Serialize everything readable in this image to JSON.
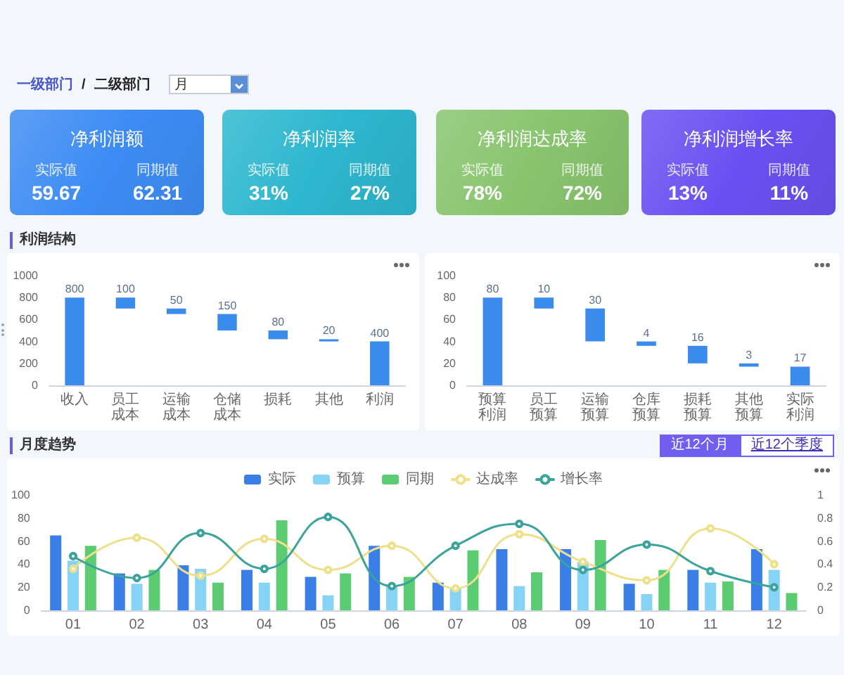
{
  "chart_data": [
    {
      "type": "other",
      "annotations": [
        "一级部门",
        "/",
        "二级部门",
        "月"
      ]
    },
    {
      "type": "other",
      "title": "净利润额",
      "color": "#3d8cf4",
      "annotations": [
        "实际值",
        "59.67",
        "同期值",
        "62.31"
      ]
    },
    {
      "type": "other",
      "title": "净利润率",
      "color": "#2db7cf",
      "annotations": [
        "实际值",
        "31%",
        "同期值",
        "27%"
      ]
    },
    {
      "type": "other",
      "title": "净利润达成率",
      "color": "#88c46e",
      "annotations": [
        "实际值",
        "78%",
        "同期值",
        "72%"
      ]
    },
    {
      "type": "other",
      "title": "净利润增长率",
      "color": "#6a50f2",
      "annotations": [
        "实际值",
        "13%",
        "同期值",
        "11%"
      ]
    },
    {
      "type": "bar",
      "title": "利润结构",
      "categories": [
        "收入",
        "员工成本",
        "运输成本",
        "仓储成本",
        "损耗",
        "其他",
        "利润"
      ],
      "values": [
        800,
        100,
        50,
        150,
        80,
        20,
        400
      ],
      "base": [
        0,
        700,
        650,
        500,
        420,
        400,
        0
      ],
      "color": "#3b8bec",
      "ylim": [
        0,
        1000
      ],
      "yticks": [
        0,
        200,
        400,
        600,
        800,
        1000
      ],
      "data_labels": true
    },
    {
      "type": "bar",
      "categories": [
        "预算利润",
        "员工预算",
        "运输预算",
        "仓库预算",
        "损耗预算",
        "其他预算",
        "实际利润"
      ],
      "values": [
        80,
        10,
        30,
        4,
        16,
        3,
        17
      ],
      "base": [
        0,
        70,
        40,
        36,
        20,
        17,
        0
      ],
      "color": "#3b8bec",
      "ylim": [
        0,
        100
      ],
      "yticks": [
        0,
        20,
        40,
        60,
        80,
        100
      ],
      "data_labels": true
    },
    {
      "type": "bar",
      "title": "月度趋势",
      "annotations": [
        "近12个月",
        "近12个季度"
      ],
      "categories": [
        "01",
        "02",
        "03",
        "04",
        "05",
        "06",
        "07",
        "08",
        "09",
        "10",
        "11",
        "12"
      ],
      "series": [
        {
          "name": "实际",
          "color": "#3a7fe8",
          "values": [
            65,
            32,
            39,
            35,
            29,
            56,
            24,
            53,
            53,
            23,
            35,
            53
          ]
        },
        {
          "name": "预算",
          "color": "#86d4f5",
          "values": [
            43,
            23,
            36,
            24,
            13,
            21,
            19,
            21,
            42,
            14,
            24,
            35
          ]
        },
        {
          "name": "同期",
          "color": "#5ccc72",
          "values": [
            56,
            35,
            24,
            78,
            32,
            29,
            52,
            33,
            61,
            35,
            25,
            15
          ]
        },
        {
          "name": "达成率",
          "type": "line",
          "axis": "y2",
          "color": "#eee08a",
          "values": [
            0.36,
            0.63,
            0.3,
            0.62,
            0.35,
            0.56,
            0.19,
            0.66,
            0.42,
            0.26,
            0.71,
            0.4
          ]
        },
        {
          "name": "增长率",
          "type": "line",
          "axis": "y2",
          "color": "#3aa39a",
          "values": [
            0.47,
            0.28,
            0.67,
            0.36,
            0.81,
            0.21,
            0.56,
            0.75,
            0.35,
            0.57,
            0.34,
            0.2
          ]
        }
      ],
      "ylim": [
        0,
        100
      ],
      "yticks": [
        0,
        20,
        40,
        60,
        80,
        100
      ],
      "y2lim": [
        0,
        1
      ],
      "y2ticks": [
        0,
        0.2,
        0.4,
        0.6,
        0.8,
        1
      ],
      "legend": "top",
      "marker": "circle"
    }
  ]
}
